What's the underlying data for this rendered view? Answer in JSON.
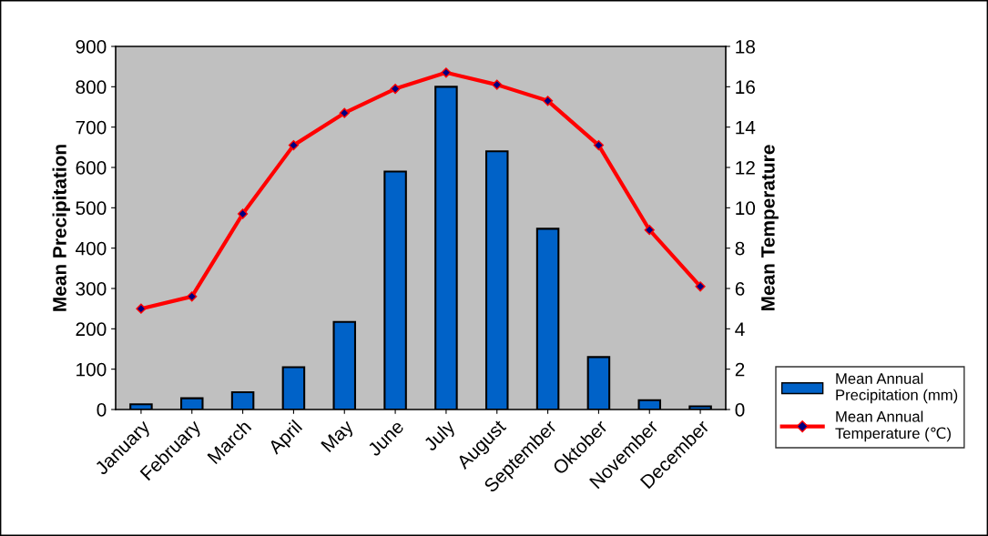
{
  "chart_data": {
    "type": "bar",
    "categories": [
      "January",
      "February",
      "March",
      "April",
      "May",
      "June",
      "July",
      "August",
      "September",
      "Oktober",
      "November",
      "December"
    ],
    "series": [
      {
        "name": "Mean Annual Precipitation (mm)",
        "color": "#0062c8",
        "values": [
          13,
          28,
          43,
          105,
          217,
          590,
          800,
          640,
          448,
          130,
          23,
          8
        ]
      },
      {
        "name": "Mean Annual Temperature (℃)",
        "type": "line",
        "axis": "y2",
        "color": "#ff0000",
        "marker": "diamond",
        "values": [
          5.0,
          5.6,
          9.7,
          13.1,
          14.7,
          15.9,
          16.7,
          16.1,
          15.3,
          13.1,
          8.9,
          6.1
        ]
      }
    ],
    "ylabel": "Mean Precipitation",
    "y2label": "Mean Temperature",
    "ylim": [
      0,
      900
    ],
    "yticks": [
      0,
      100,
      200,
      300,
      400,
      500,
      600,
      700,
      800,
      900
    ],
    "y2lim": [
      0,
      18
    ],
    "y2ticks": [
      0,
      2,
      4,
      6,
      8,
      10,
      12,
      14,
      16,
      18
    ],
    "grid": false,
    "legend": "right"
  }
}
